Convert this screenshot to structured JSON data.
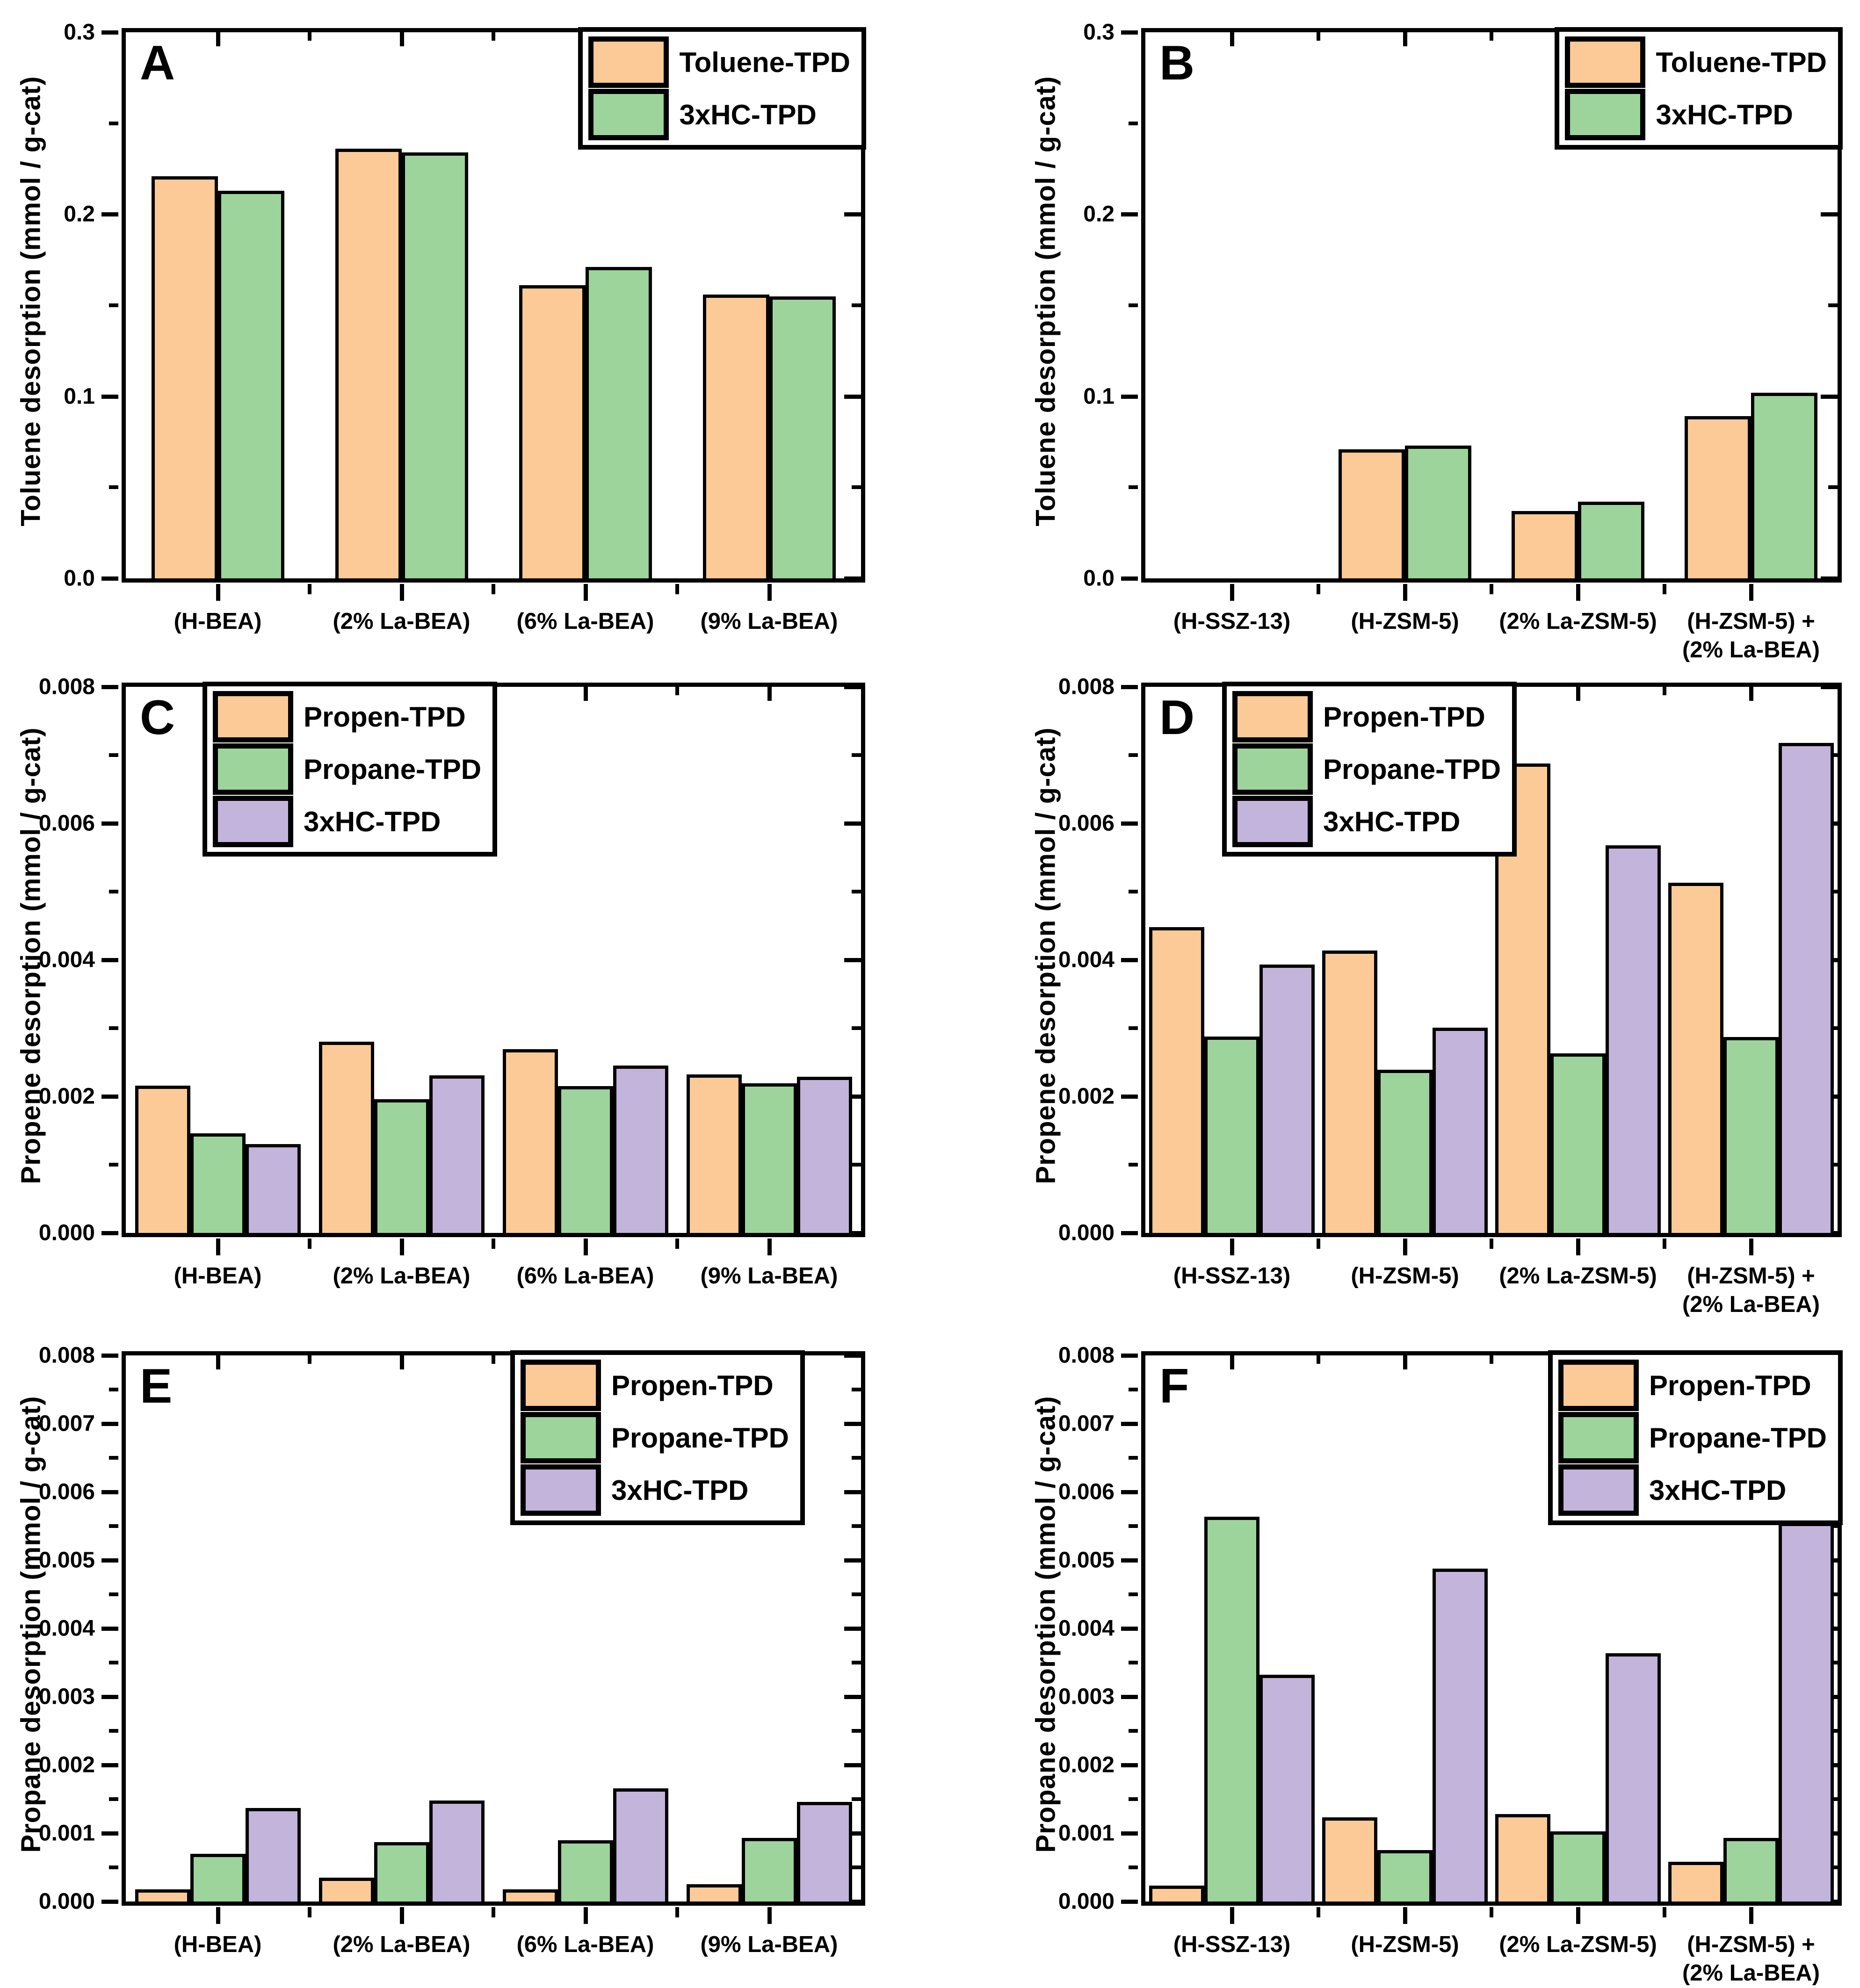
{
  "palette": {
    "orange": "#FBCA96",
    "green": "#9CD49B",
    "purple": "#C3B4DB",
    "axis": "#000000",
    "background": "#FFFFFF"
  },
  "chart_data": [
    {
      "type": "bar",
      "letter": "A",
      "ylabel": "Toluene desorption (mmol / g-cat)",
      "ymax": 0.3,
      "yticks": [
        {
          "value": 0.0,
          "label": "0.0"
        },
        {
          "value": 0.1,
          "label": "0.1"
        },
        {
          "value": 0.2,
          "label": "0.2"
        },
        {
          "value": 0.3,
          "label": "0.3"
        }
      ],
      "minor_ticks": [
        0.05,
        0.15,
        0.25
      ],
      "categories": [
        "(H-BEA)",
        "(2% La-BEA)",
        "(6% La-BEA)",
        "(9% La-BEA)"
      ],
      "series": [
        {
          "name": "Toluene-TPD",
          "color": "orange",
          "values": [
            0.221,
            0.236,
            0.161,
            0.156
          ]
        },
        {
          "name": "3xHC-TPD",
          "color": "green",
          "values": [
            0.213,
            0.234,
            0.171,
            0.155
          ]
        }
      ],
      "legend_position": "top-right"
    },
    {
      "type": "bar",
      "letter": "B",
      "ylabel": "Toluene desorption (mmol / g-cat)",
      "ymax": 0.3,
      "yticks": [
        {
          "value": 0.0,
          "label": "0.0"
        },
        {
          "value": 0.1,
          "label": "0.1"
        },
        {
          "value": 0.2,
          "label": "0.2"
        },
        {
          "value": 0.3,
          "label": "0.3"
        }
      ],
      "minor_ticks": [
        0.05,
        0.15,
        0.25
      ],
      "categories": [
        "(H-SSZ-13)",
        "(H-ZSM-5)",
        "(2% La-ZSM-5)",
        "(H-ZSM-5) +\n(2% La-BEA)"
      ],
      "series": [
        {
          "name": "Toluene-TPD",
          "color": "orange",
          "values": [
            0,
            0.071,
            0.037,
            0.089
          ]
        },
        {
          "name": "3xHC-TPD",
          "color": "green",
          "values": [
            0,
            0.073,
            0.042,
            0.102
          ]
        }
      ],
      "legend_position": "top-right"
    },
    {
      "type": "bar",
      "letter": "C",
      "ylabel": "Propene desorption (mmol / g-cat)",
      "ymax": 0.008,
      "yticks": [
        {
          "value": 0.0,
          "label": "0.000"
        },
        {
          "value": 0.002,
          "label": "0.002"
        },
        {
          "value": 0.004,
          "label": "0.004"
        },
        {
          "value": 0.006,
          "label": "0.006"
        },
        {
          "value": 0.008,
          "label": "0.008"
        }
      ],
      "minor_ticks": [
        0.001,
        0.003,
        0.005,
        0.007
      ],
      "categories": [
        "(H-BEA)",
        "(2% La-BEA)",
        "(6% La-BEA)",
        "(9% La-BEA)"
      ],
      "series": [
        {
          "name": "Propen-TPD",
          "color": "orange",
          "values": [
            0.00216,
            0.0028,
            0.00269,
            0.00232
          ]
        },
        {
          "name": "Propane-TPD",
          "color": "green",
          "values": [
            0.00146,
            0.00196,
            0.00215,
            0.00219
          ]
        },
        {
          "name": "3xHC-TPD",
          "color": "purple",
          "values": [
            0.0013,
            0.00231,
            0.00245,
            0.00229
          ]
        }
      ],
      "legend_position": "top-left"
    },
    {
      "type": "bar",
      "letter": "D",
      "ylabel": "Propene desorption (mmol / g-cat)",
      "ymax": 0.008,
      "yticks": [
        {
          "value": 0.0,
          "label": "0.000"
        },
        {
          "value": 0.002,
          "label": "0.002"
        },
        {
          "value": 0.004,
          "label": "0.004"
        },
        {
          "value": 0.006,
          "label": "0.006"
        },
        {
          "value": 0.008,
          "label": "0.008"
        }
      ],
      "minor_ticks": [
        0.001,
        0.003,
        0.005,
        0.007
      ],
      "categories": [
        "(H-SSZ-13)",
        "(H-ZSM-5)",
        "(2% La-ZSM-5)",
        "(H-ZSM-5) +\n(2% La-BEA)"
      ],
      "series": [
        {
          "name": "Propen-TPD",
          "color": "orange",
          "values": [
            0.00448,
            0.00414,
            0.00688,
            0.00513
          ]
        },
        {
          "name": "Propane-TPD",
          "color": "green",
          "values": [
            0.00288,
            0.00239,
            0.00263,
            0.00287
          ]
        },
        {
          "name": "3xHC-TPD",
          "color": "purple",
          "values": [
            0.00393,
            0.00301,
            0.00568,
            0.00718
          ]
        }
      ],
      "legend_position": "top-left"
    },
    {
      "type": "bar",
      "letter": "E",
      "ylabel": "Propane desorption (mmol / g-cat)",
      "ymax": 0.008,
      "yticks": [
        {
          "value": 0.0,
          "label": "0.000"
        },
        {
          "value": 0.001,
          "label": "0.001"
        },
        {
          "value": 0.002,
          "label": "0.002"
        },
        {
          "value": 0.003,
          "label": "0.003"
        },
        {
          "value": 0.004,
          "label": "0.004"
        },
        {
          "value": 0.005,
          "label": "0.005"
        },
        {
          "value": 0.006,
          "label": "0.006"
        },
        {
          "value": 0.007,
          "label": "0.007"
        },
        {
          "value": 0.008,
          "label": "0.008"
        }
      ],
      "minor_ticks": [
        0.0005,
        0.0015,
        0.0025,
        0.0035,
        0.0045,
        0.0055,
        0.0065,
        0.0075
      ],
      "categories": [
        "(H-BEA)",
        "(2% La-BEA)",
        "(6% La-BEA)",
        "(9% La-BEA)"
      ],
      "series": [
        {
          "name": "Propen-TPD",
          "color": "orange",
          "values": [
            0.00018,
            0.00035,
            0.00018,
            0.00025
          ]
        },
        {
          "name": "Propane-TPD",
          "color": "green",
          "values": [
            0.0007,
            0.00087,
            0.0009,
            0.00093
          ]
        },
        {
          "name": "3xHC-TPD",
          "color": "purple",
          "values": [
            0.00137,
            0.00148,
            0.00166,
            0.00146
          ]
        }
      ],
      "legend_position": "top-right-inset"
    },
    {
      "type": "bar",
      "letter": "F",
      "ylabel": "Propane desorption (mmol / g-cat)",
      "ymax": 0.008,
      "yticks": [
        {
          "value": 0.0,
          "label": "0.000"
        },
        {
          "value": 0.001,
          "label": "0.001"
        },
        {
          "value": 0.002,
          "label": "0.002"
        },
        {
          "value": 0.003,
          "label": "0.003"
        },
        {
          "value": 0.004,
          "label": "0.004"
        },
        {
          "value": 0.005,
          "label": "0.005"
        },
        {
          "value": 0.006,
          "label": "0.006"
        },
        {
          "value": 0.007,
          "label": "0.007"
        },
        {
          "value": 0.008,
          "label": "0.008"
        }
      ],
      "minor_ticks": [
        0.0005,
        0.0015,
        0.0025,
        0.0035,
        0.0045,
        0.0055,
        0.0065,
        0.0075
      ],
      "categories": [
        "(H-SSZ-13)",
        "(H-ZSM-5)",
        "(2% La-ZSM-5)",
        "(H-ZSM-5) +\n(2% La-BEA)"
      ],
      "series": [
        {
          "name": "Propen-TPD",
          "color": "orange",
          "values": [
            0.00023,
            0.00123,
            0.00128,
            0.00058
          ]
        },
        {
          "name": "Propane-TPD",
          "color": "green",
          "values": [
            0.00564,
            0.00075,
            0.00103,
            0.00093
          ]
        },
        {
          "name": "3xHC-TPD",
          "color": "purple",
          "values": [
            0.00332,
            0.00488,
            0.00364,
            0.00555
          ]
        }
      ],
      "legend_position": "top-right"
    }
  ]
}
